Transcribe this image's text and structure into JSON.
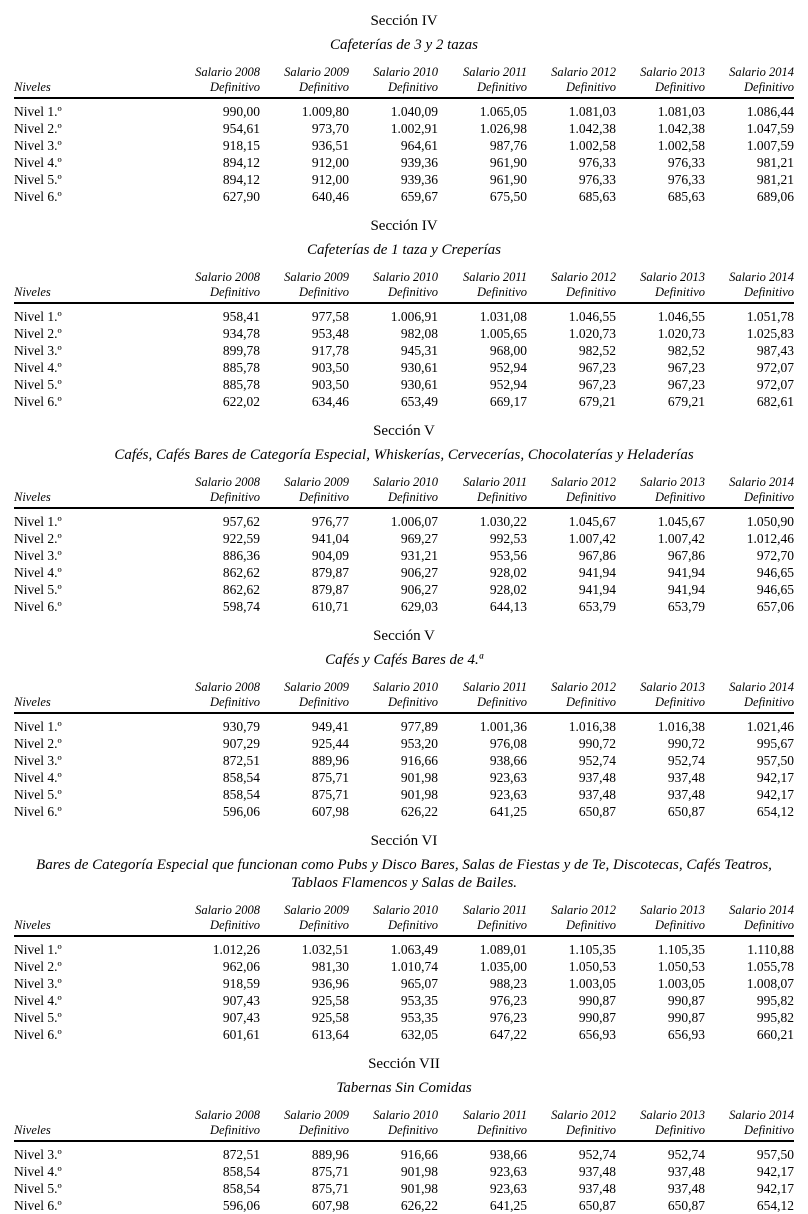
{
  "document": {
    "column_headers": {
      "niveles": "Niveles",
      "years": [
        {
          "line1": "Salario 2008",
          "line2": "Definitivo"
        },
        {
          "line1": "Salario 2009",
          "line2": "Definitivo"
        },
        {
          "line1": "Salario 2010",
          "line2": "Definitivo"
        },
        {
          "line1": "Salario 2011",
          "line2": "Definitivo"
        },
        {
          "line1": "Salario 2012",
          "line2": "Definitivo"
        },
        {
          "line1": "Salario 2013",
          "line2": "Definitivo"
        },
        {
          "line1": "Salario 2014",
          "line2": "Definitivo"
        }
      ]
    },
    "sections": [
      {
        "heading": "Sección IV",
        "subtitle_lines": [
          "Cafeterías de 3 y 2 tazas"
        ],
        "rows": [
          {
            "label": "Nivel 1.º",
            "values": [
              "990,00",
              "1.009,80",
              "1.040,09",
              "1.065,05",
              "1.081,03",
              "1.081,03",
              "1.086,44"
            ]
          },
          {
            "label": "Nivel 2.º",
            "values": [
              "954,61",
              "973,70",
              "1.002,91",
              "1.026,98",
              "1.042,38",
              "1.042,38",
              "1.047,59"
            ]
          },
          {
            "label": "Nivel 3.º",
            "values": [
              "918,15",
              "936,51",
              "964,61",
              "987,76",
              "1.002,58",
              "1.002,58",
              "1.007,59"
            ]
          },
          {
            "label": "Nivel 4.º",
            "values": [
              "894,12",
              "912,00",
              "939,36",
              "961,90",
              "976,33",
              "976,33",
              "981,21"
            ]
          },
          {
            "label": "Nivel 5.º",
            "values": [
              "894,12",
              "912,00",
              "939,36",
              "961,90",
              "976,33",
              "976,33",
              "981,21"
            ]
          },
          {
            "label": "Nivel 6.º",
            "values": [
              "627,90",
              "640,46",
              "659,67",
              "675,50",
              "685,63",
              "685,63",
              "689,06"
            ]
          }
        ]
      },
      {
        "heading": "Sección IV",
        "subtitle_lines": [
          "Cafeterías de 1 taza y Creperías"
        ],
        "rows": [
          {
            "label": "Nivel 1.º",
            "values": [
              "958,41",
              "977,58",
              "1.006,91",
              "1.031,08",
              "1.046,55",
              "1.046,55",
              "1.051,78"
            ]
          },
          {
            "label": "Nivel 2.º",
            "values": [
              "934,78",
              "953,48",
              "982,08",
              "1.005,65",
              "1.020,73",
              "1.020,73",
              "1.025,83"
            ]
          },
          {
            "label": "Nivel 3.º",
            "values": [
              "899,78",
              "917,78",
              "945,31",
              "968,00",
              "982,52",
              "982,52",
              "987,43"
            ]
          },
          {
            "label": "Nivel 4.º",
            "values": [
              "885,78",
              "903,50",
              "930,61",
              "952,94",
              "967,23",
              "967,23",
              "972,07"
            ]
          },
          {
            "label": "Nivel 5.º",
            "values": [
              "885,78",
              "903,50",
              "930,61",
              "952,94",
              "967,23",
              "967,23",
              "972,07"
            ]
          },
          {
            "label": "Nivel 6.º",
            "values": [
              "622,02",
              "634,46",
              "653,49",
              "669,17",
              "679,21",
              "679,21",
              "682,61"
            ]
          }
        ]
      },
      {
        "heading": "Sección V",
        "subtitle_lines": [
          "Cafés, Cafés Bares de Categoría Especial, Whiskerías, Cervecerías, Chocolaterías y Heladerías"
        ],
        "rows": [
          {
            "label": "Nivel 1.º",
            "values": [
              "957,62",
              "976,77",
              "1.006,07",
              "1.030,22",
              "1.045,67",
              "1.045,67",
              "1.050,90"
            ]
          },
          {
            "label": "Nivel 2.º",
            "values": [
              "922,59",
              "941,04",
              "969,27",
              "992,53",
              "1.007,42",
              "1.007,42",
              "1.012,46"
            ]
          },
          {
            "label": "Nivel 3.º",
            "values": [
              "886,36",
              "904,09",
              "931,21",
              "953,56",
              "967,86",
              "967,86",
              "972,70"
            ]
          },
          {
            "label": "Nivel 4.º",
            "values": [
              "862,62",
              "879,87",
              "906,27",
              "928,02",
              "941,94",
              "941,94",
              "946,65"
            ]
          },
          {
            "label": "Nivel 5.º",
            "values": [
              "862,62",
              "879,87",
              "906,27",
              "928,02",
              "941,94",
              "941,94",
              "946,65"
            ]
          },
          {
            "label": "Nivel 6.º",
            "values": [
              "598,74",
              "610,71",
              "629,03",
              "644,13",
              "653,79",
              "653,79",
              "657,06"
            ]
          }
        ]
      },
      {
        "heading": "Sección V",
        "subtitle_lines": [
          "Cafés y Cafés Bares de 4.ª"
        ],
        "rows": [
          {
            "label": "Nivel 1.º",
            "values": [
              "930,79",
              "949,41",
              "977,89",
              "1.001,36",
              "1.016,38",
              "1.016,38",
              "1.021,46"
            ]
          },
          {
            "label": "Nivel 2.º",
            "values": [
              "907,29",
              "925,44",
              "953,20",
              "976,08",
              "990,72",
              "990,72",
              "995,67"
            ]
          },
          {
            "label": "Nivel 3.º",
            "values": [
              "872,51",
              "889,96",
              "916,66",
              "938,66",
              "952,74",
              "952,74",
              "957,50"
            ]
          },
          {
            "label": "Nivel 4.º",
            "values": [
              "858,54",
              "875,71",
              "901,98",
              "923,63",
              "937,48",
              "937,48",
              "942,17"
            ]
          },
          {
            "label": "Nivel 5.º",
            "values": [
              "858,54",
              "875,71",
              "901,98",
              "923,63",
              "937,48",
              "937,48",
              "942,17"
            ]
          },
          {
            "label": "Nivel 6.º",
            "values": [
              "596,06",
              "607,98",
              "626,22",
              "641,25",
              "650,87",
              "650,87",
              "654,12"
            ]
          }
        ]
      },
      {
        "heading": "Sección VI",
        "subtitle_lines": [
          "Bares de Categoría Especial que funcionan como Pubs y Disco Bares, Salas de Fiestas y de Te, Discotecas, Cafés Teatros,",
          "Tablaos Flamencos y Salas de Bailes."
        ],
        "rows": [
          {
            "label": "Nivel 1.º",
            "values": [
              "1.012,26",
              "1.032,51",
              "1.063,49",
              "1.089,01",
              "1.105,35",
              "1.105,35",
              "1.110,88"
            ]
          },
          {
            "label": "Nivel 2.º",
            "values": [
              "962,06",
              "981,30",
              "1.010,74",
              "1.035,00",
              "1.050,53",
              "1.050,53",
              "1.055,78"
            ]
          },
          {
            "label": "Nivel 3.º",
            "values": [
              "918,59",
              "936,96",
              "965,07",
              "988,23",
              "1.003,05",
              "1.003,05",
              "1.008,07"
            ]
          },
          {
            "label": "Nivel 4.º",
            "values": [
              "907,43",
              "925,58",
              "953,35",
              "976,23",
              "990,87",
              "990,87",
              "995,82"
            ]
          },
          {
            "label": "Nivel 5.º",
            "values": [
              "907,43",
              "925,58",
              "953,35",
              "976,23",
              "990,87",
              "990,87",
              "995,82"
            ]
          },
          {
            "label": "Nivel 6.º",
            "values": [
              "601,61",
              "613,64",
              "632,05",
              "647,22",
              "656,93",
              "656,93",
              "660,21"
            ]
          }
        ]
      },
      {
        "heading": "Sección VII",
        "subtitle_lines": [
          "Tabernas Sin Comidas"
        ],
        "rows": [
          {
            "label": "Nivel 3.º",
            "values": [
              "872,51",
              "889,96",
              "916,66",
              "938,66",
              "952,74",
              "952,74",
              "957,50"
            ]
          },
          {
            "label": "Nivel 4.º",
            "values": [
              "858,54",
              "875,71",
              "901,98",
              "923,63",
              "937,48",
              "937,48",
              "942,17"
            ]
          },
          {
            "label": "Nivel 5.º",
            "values": [
              "858,54",
              "875,71",
              "901,98",
              "923,63",
              "937,48",
              "937,48",
              "942,17"
            ]
          },
          {
            "label": "Nivel 6.º",
            "values": [
              "596,06",
              "607,98",
              "626,22",
              "641,25",
              "650,87",
              "650,87",
              "654,12"
            ]
          }
        ]
      }
    ]
  }
}
